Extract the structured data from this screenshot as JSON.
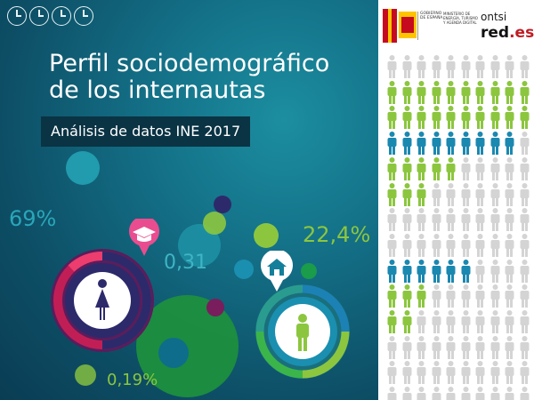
{
  "title_line1": "Perfil sociodemográfico",
  "title_line2": "de los internautas",
  "subtitle": "Análisis de datos INE 2017",
  "stats": [
    "69%",
    "0,31",
    "22,4%",
    "0,19%"
  ],
  "logos": {
    "gov_line1": "GOBIERNO",
    "gov_line2": "DE ESPAÑA",
    "ministry": "MINISTERIO DE ENERGÍA, TURISMO Y AGENDA DIGITAL",
    "ontsi": "ontsi",
    "reds": "red",
    "reds_suffix": ".es"
  },
  "colors": {
    "teal_bg": "#136f86",
    "green": "#8cc63f",
    "blue": "#1b88b0",
    "gray": "#d4d4d4",
    "pink": "#e91e63",
    "navy": "#2c2a6b"
  },
  "icons": [
    "clock-icon",
    "clock-icon",
    "clock-icon",
    "clock-icon",
    "graduation-cap-icon",
    "house-icon",
    "woman-icon",
    "man-icon",
    "person-icon"
  ],
  "pictogram_rows": [
    [
      "g",
      10,
      "gray"
    ],
    [
      "b",
      10,
      "green"
    ],
    [
      "b",
      10,
      "green"
    ],
    [
      "b",
      9,
      "blue"
    ],
    [
      "b",
      5,
      "green"
    ],
    [
      "b",
      3,
      "green"
    ],
    [
      "b",
      0,
      "gray"
    ],
    [
      "b",
      0,
      "gray"
    ],
    [
      "b",
      6,
      "blue"
    ],
    [
      "b",
      3,
      "green"
    ],
    [
      "b",
      2,
      "green"
    ],
    [
      "b",
      0,
      "gray"
    ],
    [
      "b",
      0,
      "gray"
    ],
    [
      "b",
      0,
      "gray"
    ]
  ]
}
